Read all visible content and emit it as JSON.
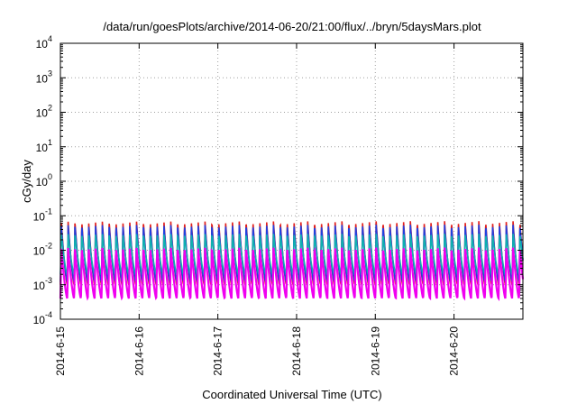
{
  "chart_data": {
    "type": "line",
    "title": "/data/run/goesPlots/archive/2014-06-20/21:00/flux/../bryn/5daysMars.plot",
    "xlabel": "Coordinated Universal Time (UTC)",
    "ylabel": "cGy/day",
    "yscale": "log",
    "ylim": [
      0.0001,
      10000
    ],
    "xlim": [
      "2014-06-15 00:00",
      "2014-06-20 21:00"
    ],
    "x_tick_labels": [
      "2014-6-15",
      "2014-6-16",
      "2014-6-17",
      "2014-6-18",
      "2014-6-19",
      "2014-6-20"
    ],
    "y_ticks": [
      {
        "value": 0.0001,
        "base": "10",
        "exp": "-4"
      },
      {
        "value": 0.001,
        "base": "10",
        "exp": "-3"
      },
      {
        "value": 0.01,
        "base": "10",
        "exp": "-2"
      },
      {
        "value": 0.1,
        "base": "10",
        "exp": "-1"
      },
      {
        "value": 1,
        "base": "10",
        "exp": "0"
      },
      {
        "value": 10,
        "base": "10",
        "exp": "1"
      },
      {
        "value": 100,
        "base": "10",
        "exp": "2"
      },
      {
        "value": 1000,
        "base": "10",
        "exp": "3"
      },
      {
        "value": 10000,
        "base": "10",
        "exp": "4"
      }
    ],
    "grid": true,
    "legend": "none",
    "periodic_pattern": {
      "cycles_per_day": 11.5,
      "period_hours": 2.087
    },
    "series": [
      {
        "color": "#e0201e",
        "peak": 0.07,
        "trough": 0.001
      },
      {
        "color": "#2040e0",
        "peak": 0.055,
        "trough": 0.0012
      },
      {
        "color": "#10b0b0",
        "peak": 0.03,
        "trough": 0.002
      },
      {
        "color": "#f000f0",
        "peak": 0.012,
        "trough": 0.0004
      }
    ]
  }
}
